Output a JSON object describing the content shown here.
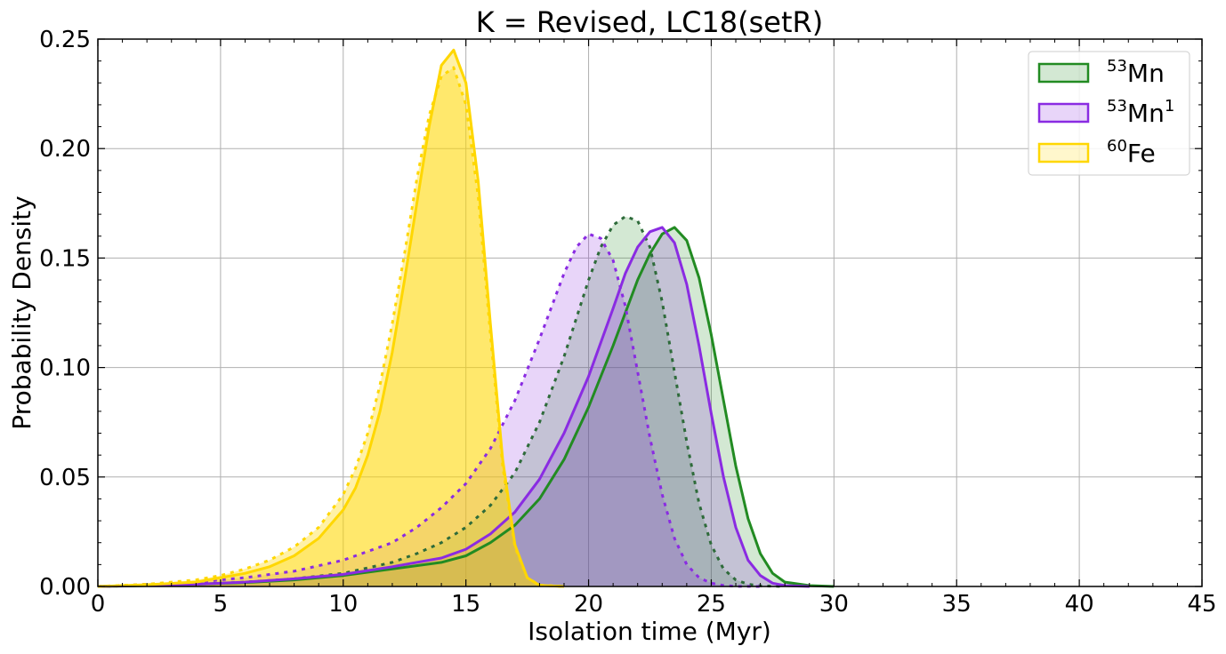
{
  "chart_data": {
    "type": "area",
    "title": "K = Revised, LC18(setR)",
    "xlabel": "Isolation time (Myr)",
    "ylabel": "Probability Density",
    "xlim": [
      0,
      45
    ],
    "ylim": [
      0,
      0.25
    ],
    "xticks": [
      "0",
      "5",
      "10",
      "15",
      "20",
      "25",
      "30",
      "35",
      "40",
      "45"
    ],
    "yticks": [
      "0.00",
      "0.05",
      "0.10",
      "0.15",
      "0.20",
      "0.25"
    ],
    "grid": true,
    "legend_position": "top-right",
    "legend": [
      {
        "sup_pre": "53",
        "base": "Mn",
        "sup_post": "",
        "color": "#228B22"
      },
      {
        "sup_pre": "53",
        "base": "Mn",
        "sup_post": "1",
        "color": "#8A2BE2"
      },
      {
        "sup_pre": "60",
        "base": "Fe",
        "sup_post": "",
        "color": "#FFD700"
      }
    ],
    "series": [
      {
        "key": "mn53-dashed",
        "color": "#228B22",
        "line_color": "#2E6B3A",
        "line_style": "dashed",
        "fill_opacity": 0.2,
        "x": [
          0,
          2,
          4,
          6,
          8,
          10,
          12,
          13,
          14,
          15,
          16,
          17,
          18,
          19,
          20,
          20.5,
          21,
          21.5,
          22,
          22.5,
          23,
          23.5,
          24,
          24.5,
          25,
          25.5,
          26,
          26.5,
          27,
          28
        ],
        "y": [
          0,
          0.0005,
          0.001,
          0.002,
          0.0035,
          0.006,
          0.011,
          0.015,
          0.02,
          0.027,
          0.037,
          0.052,
          0.075,
          0.105,
          0.14,
          0.155,
          0.165,
          0.169,
          0.167,
          0.155,
          0.13,
          0.098,
          0.066,
          0.038,
          0.019,
          0.008,
          0.003,
          0.001,
          0.0003,
          0
        ]
      },
      {
        "key": "mn53-solid",
        "color": "#228B22",
        "line_color": "#228B22",
        "line_style": "solid",
        "fill_opacity": 0.2,
        "x": [
          0,
          2,
          4,
          6,
          8,
          10,
          12,
          14,
          15,
          16,
          17,
          18,
          19,
          20,
          21,
          22,
          22.5,
          23,
          23.5,
          24,
          24.5,
          25,
          25.5,
          26,
          26.5,
          27,
          27.5,
          28,
          29,
          30
        ],
        "y": [
          0,
          0.0004,
          0.001,
          0.0018,
          0.003,
          0.005,
          0.008,
          0.011,
          0.014,
          0.02,
          0.028,
          0.04,
          0.058,
          0.082,
          0.11,
          0.14,
          0.152,
          0.161,
          0.164,
          0.158,
          0.141,
          0.115,
          0.085,
          0.055,
          0.031,
          0.015,
          0.006,
          0.002,
          0.0004,
          0
        ]
      },
      {
        "key": "mn53-1-dashed",
        "color": "#8A2BE2",
        "line_color": "#8A2BE2",
        "line_style": "dashed",
        "fill_opacity": 0.2,
        "x": [
          0,
          2,
          4,
          6,
          8,
          10,
          12,
          13,
          14,
          15,
          16,
          17,
          18,
          18.5,
          19,
          19.5,
          20,
          20.5,
          21,
          21.5,
          22,
          22.5,
          23,
          23.5,
          24,
          24.5,
          25,
          25.5,
          26,
          27
        ],
        "y": [
          0,
          0.001,
          0.002,
          0.004,
          0.007,
          0.012,
          0.02,
          0.027,
          0.036,
          0.047,
          0.063,
          0.085,
          0.113,
          0.128,
          0.143,
          0.155,
          0.161,
          0.159,
          0.149,
          0.128,
          0.098,
          0.068,
          0.042,
          0.022,
          0.01,
          0.004,
          0.0015,
          0.0005,
          0.0001,
          0
        ]
      },
      {
        "key": "mn53-1-solid",
        "color": "#8A2BE2",
        "line_color": "#8A2BE2",
        "line_style": "solid",
        "fill_opacity": 0.2,
        "x": [
          0,
          2,
          4,
          6,
          8,
          10,
          12,
          14,
          15,
          16,
          17,
          18,
          19,
          20,
          21,
          21.5,
          22,
          22.5,
          23,
          23.5,
          24,
          24.5,
          25,
          25.5,
          26,
          26.5,
          27,
          27.5,
          28,
          29
        ],
        "y": [
          0,
          0.0005,
          0.001,
          0.002,
          0.0035,
          0.0055,
          0.009,
          0.013,
          0.017,
          0.024,
          0.034,
          0.049,
          0.07,
          0.096,
          0.127,
          0.143,
          0.155,
          0.162,
          0.164,
          0.157,
          0.138,
          0.11,
          0.079,
          0.05,
          0.027,
          0.012,
          0.005,
          0.0015,
          0.0004,
          0
        ]
      },
      {
        "key": "fe60-dashed",
        "color": "#FFD700",
        "line_color": "#FFD700",
        "line_style": "dashed",
        "fill_opacity": 0.35,
        "x": [
          0,
          2,
          4,
          5,
          6,
          7,
          8,
          9,
          10,
          10.5,
          11,
          11.5,
          12,
          12.5,
          13,
          13.5,
          14,
          14.5,
          15,
          15.5,
          16,
          16.5,
          17,
          17.5,
          18,
          19
        ],
        "y": [
          0,
          0.001,
          0.003,
          0.005,
          0.008,
          0.012,
          0.018,
          0.027,
          0.042,
          0.054,
          0.07,
          0.092,
          0.12,
          0.152,
          0.186,
          0.215,
          0.233,
          0.237,
          0.22,
          0.178,
          0.115,
          0.055,
          0.018,
          0.004,
          0.0006,
          0
        ]
      },
      {
        "key": "fe60-solid",
        "color": "#FFD700",
        "line_color": "#FFD700",
        "line_style": "solid",
        "fill_opacity": 0.35,
        "x": [
          0,
          2,
          4,
          5,
          6,
          7,
          8,
          9,
          10,
          10.5,
          11,
          11.5,
          12,
          12.5,
          13,
          13.5,
          14,
          14.5,
          15,
          15.5,
          16,
          16.5,
          17,
          17.5,
          18,
          19
        ],
        "y": [
          0,
          0.0008,
          0.002,
          0.004,
          0.006,
          0.009,
          0.014,
          0.022,
          0.035,
          0.045,
          0.06,
          0.08,
          0.107,
          0.14,
          0.175,
          0.21,
          0.238,
          0.245,
          0.23,
          0.185,
          0.12,
          0.058,
          0.019,
          0.004,
          0.0005,
          0
        ]
      }
    ]
  }
}
